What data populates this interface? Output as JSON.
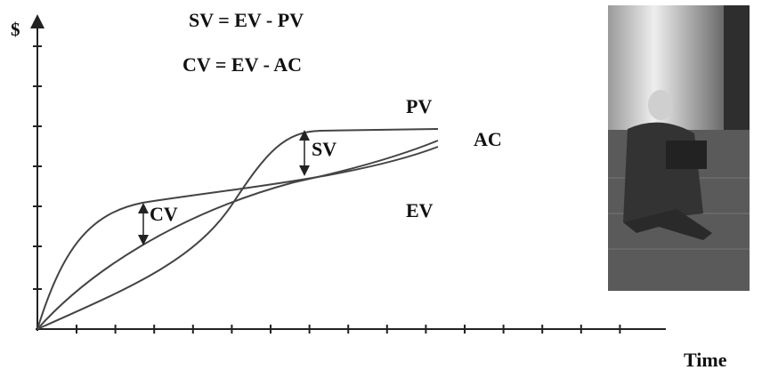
{
  "axes": {
    "y_label": "$",
    "x_label": "Time"
  },
  "formulas": [
    "SV = EV - PV",
    "CV = EV - AC"
  ],
  "curves": [
    "PV",
    "AC",
    "EV"
  ],
  "variances": [
    "CV",
    "SV"
  ]
}
